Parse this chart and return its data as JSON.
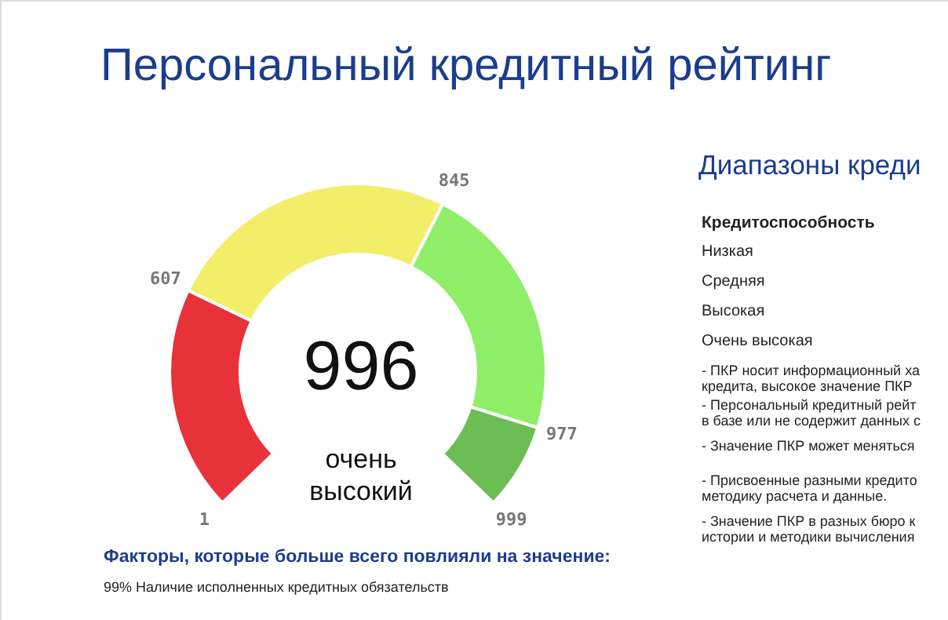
{
  "chart_data": {
    "type": "donut",
    "title": "Персональный кредитный рейтинг",
    "categories": [
      null,
      null,
      null,
      null
    ],
    "values": [
      26,
      34,
      30,
      10
    ],
    "colors": [
      "#e8323a",
      "#f3ee6a",
      "#8fef68",
      "#6dbd55"
    ],
    "annotations": [
      "996",
      "очень высокий",
      "1",
      "607",
      "845",
      "977",
      "999",
      "Факторы, которые больше всего повлияли на значение:",
      "99% Наличие исполненных кредитных обязательств",
      "Диапазоны креди",
      "Кредитоспособность",
      "Низкая",
      "Средняя",
      "Высокая",
      "Очень высокая",
      "- ПКР носит информационный ха",
      "кредита, высокое значение ПКР",
      "- Персональный кредитный рейт",
      "в базе или не содержит данных с",
      "- Значение ПКР может меняться",
      "- Присвоенные разными кредито",
      "методику расчета и данные.",
      "- Значение ПКР в разных бюро к",
      "истории и методики вычисления"
    ]
  }
}
